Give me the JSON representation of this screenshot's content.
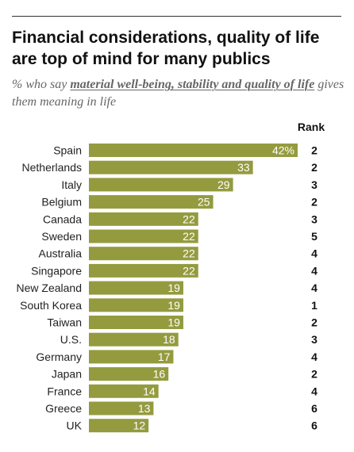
{
  "title": "Financial considerations, quality of life are top of mind for many publics",
  "subtitle": {
    "prefix": "% who say ",
    "highlight": "material well-being, stability and quality of life",
    "suffix": " gives them meaning in life"
  },
  "rank_header": "Rank",
  "colors": {
    "bar": "#949b3f",
    "value_text": "#ffffff",
    "text": "#222222"
  },
  "chart_data": {
    "type": "bar",
    "orientation": "horizontal",
    "categories": [
      "Spain",
      "Netherlands",
      "Italy",
      "Belgium",
      "Canada",
      "Sweden",
      "Australia",
      "Singapore",
      "New Zealand",
      "South Korea",
      "Taiwan",
      "U.S.",
      "Germany",
      "Japan",
      "France",
      "Greece",
      "UK"
    ],
    "values": [
      42,
      33,
      29,
      25,
      22,
      22,
      22,
      22,
      19,
      19,
      19,
      18,
      17,
      16,
      14,
      13,
      12
    ],
    "value_labels": [
      "42%",
      "33",
      "29",
      "25",
      "22",
      "22",
      "22",
      "22",
      "19",
      "19",
      "19",
      "18",
      "17",
      "16",
      "14",
      "13",
      "12"
    ],
    "ranks": [
      "2",
      "2",
      "3",
      "2",
      "3",
      "5",
      "4",
      "4",
      "4",
      "1",
      "2",
      "3",
      "4",
      "2",
      "4",
      "6",
      "6"
    ],
    "title": "Financial considerations, quality of life are top of mind for many publics",
    "xlabel": "",
    "ylabel": "",
    "xlim": [
      0,
      42
    ],
    "grid": false,
    "legend": "none"
  }
}
